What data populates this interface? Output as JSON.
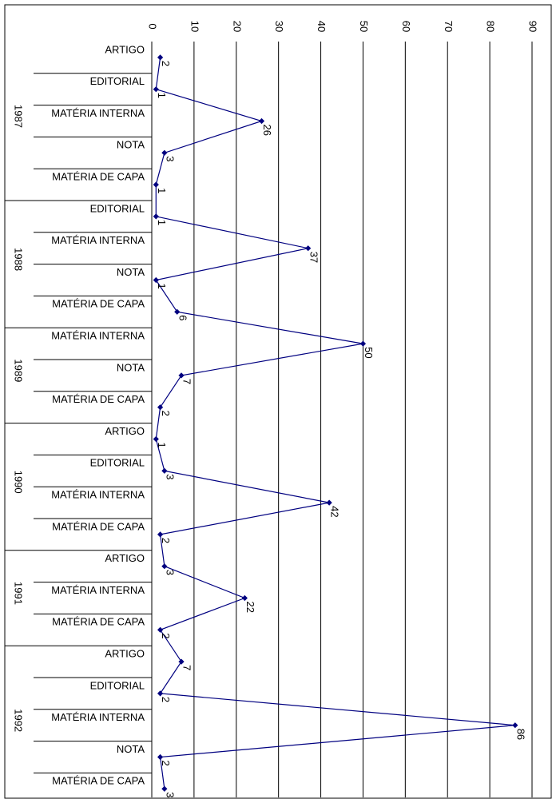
{
  "chart_data": {
    "type": "line",
    "orientation": "horizontal-values-rotated",
    "title": "",
    "xlabel": "",
    "ylabel": "",
    "xlim": [
      0,
      90
    ],
    "ticks": [
      0,
      10,
      20,
      30,
      40,
      50,
      60,
      70,
      80,
      90
    ],
    "grid": true,
    "legend": "none",
    "series_color": "#000080",
    "groups": [
      {
        "year": "1987",
        "categories": [
          "ARTIGO",
          "EDITORIAL",
          "MATÉRIA INTERNA",
          "NOTA",
          "MATÉRIA DE CAPA"
        ],
        "values": [
          2,
          1,
          26,
          3,
          1
        ]
      },
      {
        "year": "1988",
        "categories": [
          "EDITORIAL",
          "MATÉRIA INTERNA",
          "NOTA",
          "MATÉRIA DE CAPA"
        ],
        "values": [
          1,
          37,
          1,
          6
        ]
      },
      {
        "year": "1989",
        "categories": [
          "MATÉRIA INTERNA",
          "NOTA",
          "MATÉRIA DE CAPA"
        ],
        "values": [
          50,
          7,
          2
        ]
      },
      {
        "year": "1990",
        "categories": [
          "ARTIGO",
          "EDITORIAL",
          "MATÉRIA INTERNA",
          "MATÉRIA DE CAPA"
        ],
        "values": [
          1,
          3,
          42,
          2
        ]
      },
      {
        "year": "1991",
        "categories": [
          "ARTIGO",
          "MATÉRIA INTERNA",
          "MATÉRIA DE CAPA"
        ],
        "values": [
          3,
          22,
          2
        ]
      },
      {
        "year": "1992",
        "categories": [
          "ARTIGO",
          "EDITORIAL",
          "MATÉRIA INTERNA",
          "NOTA",
          "MATÉRIA DE CAPA"
        ],
        "values": [
          7,
          2,
          86,
          2,
          3
        ]
      }
    ]
  }
}
